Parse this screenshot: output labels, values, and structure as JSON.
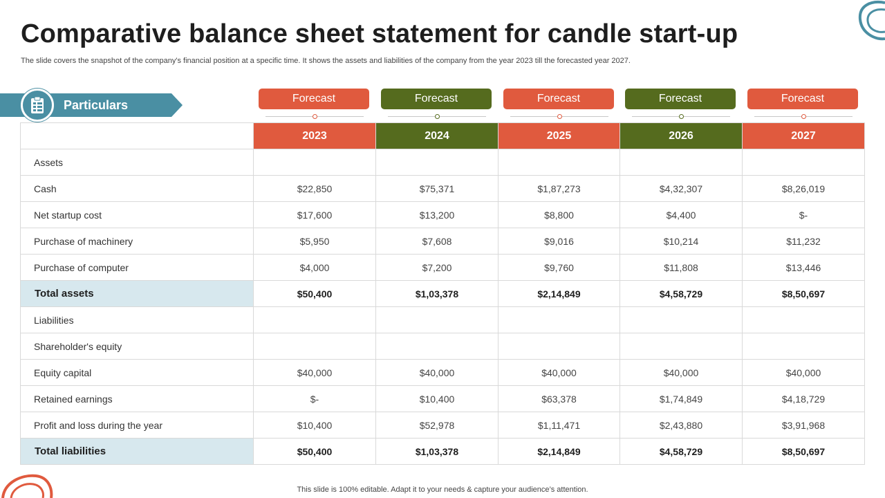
{
  "title": "Comparative balance sheet statement for candle start-up",
  "subtitle": "The slide covers the snapshot of the company's financial position at a specific time. It shows the assets and liabilities of the company from the year 2023 till the forecasted year 2027.",
  "particulars": {
    "label": "Particulars",
    "icon": "clipboard-icon"
  },
  "colors": {
    "orange": "#e05a3e",
    "green": "#556b1e",
    "teal": "#4a8fa3",
    "total_row": "#d7e8ee"
  },
  "columns": [
    {
      "forecast": "Forecast",
      "year": "2023",
      "color": "orange"
    },
    {
      "forecast": "Forecast",
      "year": "2024",
      "color": "green"
    },
    {
      "forecast": "Forecast",
      "year": "2025",
      "color": "orange"
    },
    {
      "forecast": "Forecast",
      "year": "2026",
      "color": "green"
    },
    {
      "forecast": "Forecast",
      "year": "2027",
      "color": "orange"
    }
  ],
  "rows": [
    {
      "label": "Assets",
      "values": [
        "",
        "",
        "",
        "",
        ""
      ],
      "total": false
    },
    {
      "label": "Cash",
      "values": [
        "$22,850",
        "$75,371",
        "$1,87,273",
        "$4,32,307",
        "$8,26,019"
      ],
      "total": false
    },
    {
      "label": "Net startup cost",
      "values": [
        "$17,600",
        "$13,200",
        "$8,800",
        "$4,400",
        "$-"
      ],
      "total": false
    },
    {
      "label": "Purchase of machinery",
      "values": [
        "$5,950",
        "$7,608",
        "$9,016",
        "$10,214",
        "$11,232"
      ],
      "total": false
    },
    {
      "label": "Purchase of computer",
      "values": [
        "$4,000",
        "$7,200",
        "$9,760",
        "$11,808",
        "$13,446"
      ],
      "total": false
    },
    {
      "label": "Total assets",
      "values": [
        "$50,400",
        "$1,03,378",
        "$2,14,849",
        "$4,58,729",
        "$8,50,697"
      ],
      "total": true
    },
    {
      "label": "Liabilities",
      "values": [
        "",
        "",
        "",
        "",
        ""
      ],
      "total": false
    },
    {
      "label": "Shareholder's equity",
      "values": [
        "",
        "",
        "",
        "",
        ""
      ],
      "total": false
    },
    {
      "label": "Equity capital",
      "values": [
        "$40,000",
        "$40,000",
        "$40,000",
        "$40,000",
        "$40,000"
      ],
      "total": false
    },
    {
      "label": "Retained earnings",
      "values": [
        "$-",
        "$10,400",
        "$63,378",
        "$1,74,849",
        "$4,18,729"
      ],
      "total": false
    },
    {
      "label": "Profit and loss during the year",
      "values": [
        "$10,400",
        "$52,978",
        "$1,11,471",
        "$2,43,880",
        "$3,91,968"
      ],
      "total": false
    },
    {
      "label": "Total liabilities",
      "values": [
        "$50,400",
        "$1,03,378",
        "$2,14,849",
        "$4,58,729",
        "$8,50,697"
      ],
      "total": true
    }
  ],
  "footer": "This slide is 100% editable. Adapt it to your needs & capture your audience’s attention."
}
